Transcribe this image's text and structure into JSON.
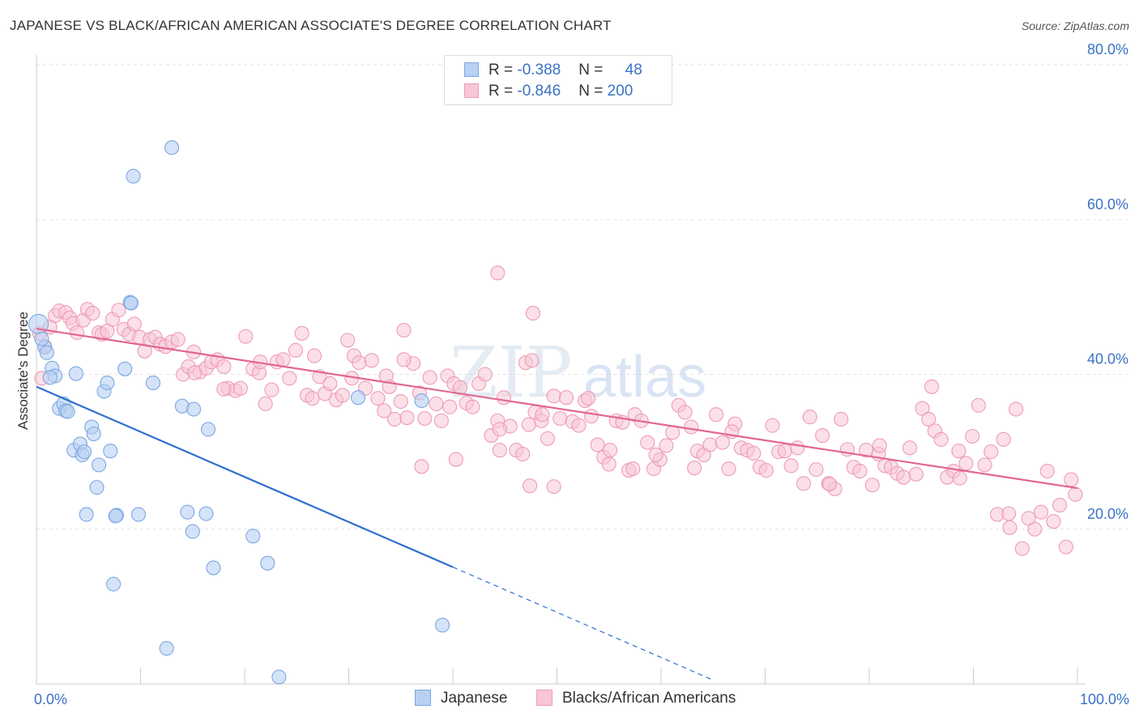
{
  "title": "JAPANESE VS BLACK/AFRICAN AMERICAN ASSOCIATE'S DEGREE CORRELATION CHART",
  "source": "Source: ZipAtlas.com",
  "watermark": {
    "zip": "ZIP",
    "atlas": "atlas"
  },
  "colors": {
    "japanese_fill": "#b8d1f3",
    "japanese_stroke": "#7da7e0",
    "japanese_line": "#2f6fd0",
    "black_fill": "#f8c6d5",
    "black_stroke": "#ee9bb6",
    "black_line": "#e2668f",
    "axis_text": "#3a72c6",
    "grid": "#e2e2e2"
  },
  "legend": {
    "japanese": {
      "r_label": "R = ",
      "r_value": "-0.388",
      "n_label": "N = ",
      "n_value": "48"
    },
    "black": {
      "r_label": "R = ",
      "r_value": "-0.846",
      "n_label": "N = ",
      "n_value": "200"
    }
  },
  "bottom_legend": {
    "japanese": "Japanese",
    "black": "Blacks/African Americans"
  },
  "chart_data": {
    "type": "scatter",
    "xlabel": "",
    "ylabel": "Associate's Degree",
    "xlim": [
      0,
      100
    ],
    "ylim": [
      0,
      80
    ],
    "x_tick_labels": [
      "0.0%",
      "100.0%"
    ],
    "y_ticks": [
      20,
      40,
      60,
      80
    ],
    "y_tick_labels": [
      "20.0%",
      "40.0%",
      "60.0%",
      "80.0%"
    ],
    "grid": true,
    "legend_position": "top-center",
    "series": [
      {
        "name": "Japanese",
        "trend": {
          "x0": 0,
          "y0": 38.4,
          "x1": 40,
          "y1": 15.1,
          "dashed_to_x": 65,
          "dashed_to_y": 0.5
        },
        "points": [
          [
            0.2,
            46.5
          ],
          [
            0.8,
            43.5
          ],
          [
            1.0,
            42.8
          ],
          [
            1.5,
            40.8
          ],
          [
            1.8,
            39.8
          ],
          [
            1.3,
            39.6
          ],
          [
            3.8,
            40.1
          ],
          [
            2.2,
            35.6
          ],
          [
            2.6,
            36.2
          ],
          [
            2.8,
            35.3
          ],
          [
            3.6,
            30.2
          ],
          [
            4.2,
            31.0
          ],
          [
            4.4,
            29.6
          ],
          [
            4.6,
            30.0
          ],
          [
            5.3,
            33.2
          ],
          [
            5.5,
            32.3
          ],
          [
            6.0,
            28.3
          ],
          [
            5.8,
            25.4
          ],
          [
            6.5,
            37.8
          ],
          [
            6.8,
            38.9
          ],
          [
            7.1,
            30.1
          ],
          [
            4.8,
            21.9
          ],
          [
            7.7,
            21.8
          ],
          [
            9.8,
            21.9
          ],
          [
            8.5,
            40.7
          ],
          [
            9.0,
            49.3
          ],
          [
            9.3,
            65.6
          ],
          [
            11.2,
            38.9
          ],
          [
            13.0,
            69.3
          ],
          [
            14.0,
            35.9
          ],
          [
            15.1,
            35.5
          ],
          [
            14.5,
            22.2
          ],
          [
            16.3,
            22.0
          ],
          [
            15.0,
            19.7
          ],
          [
            16.5,
            32.9
          ],
          [
            17.0,
            15.0
          ],
          [
            7.4,
            12.9
          ],
          [
            12.5,
            4.6
          ],
          [
            20.8,
            19.1
          ],
          [
            22.2,
            15.6
          ],
          [
            23.3,
            0.9
          ],
          [
            30.9,
            37.0
          ],
          [
            37.0,
            36.6
          ],
          [
            39.0,
            7.6
          ],
          [
            9.1,
            49.2
          ],
          [
            7.6,
            21.7
          ],
          [
            0.5,
            44.6
          ],
          [
            3.0,
            35.2
          ]
        ]
      },
      {
        "name": "Blacks/African Americans",
        "trend": {
          "x0": 0,
          "y0": 45.9,
          "x1": 100,
          "y1": 25.3
        },
        "points": [
          [
            0.3,
            45.3
          ],
          [
            0.5,
            39.5
          ],
          [
            0.8,
            43.6
          ],
          [
            1.3,
            46.1
          ],
          [
            1.8,
            47.6
          ],
          [
            2.2,
            48.2
          ],
          [
            2.8,
            48.0
          ],
          [
            3.2,
            47.3
          ],
          [
            3.5,
            46.6
          ],
          [
            3.9,
            45.4
          ],
          [
            4.5,
            47.0
          ],
          [
            4.9,
            48.4
          ],
          [
            5.4,
            47.9
          ],
          [
            6.0,
            45.4
          ],
          [
            6.3,
            45.2
          ],
          [
            6.8,
            45.6
          ],
          [
            7.3,
            47.1
          ],
          [
            7.9,
            48.3
          ],
          [
            8.4,
            45.8
          ],
          [
            8.9,
            45.2
          ],
          [
            9.4,
            46.5
          ],
          [
            9.9,
            44.8
          ],
          [
            10.4,
            43.0
          ],
          [
            10.9,
            44.5
          ],
          [
            11.4,
            44.8
          ],
          [
            11.9,
            43.9
          ],
          [
            12.4,
            43.6
          ],
          [
            13.0,
            44.2
          ],
          [
            13.6,
            44.5
          ],
          [
            14.1,
            40.0
          ],
          [
            14.6,
            41.0
          ],
          [
            15.1,
            42.9
          ],
          [
            15.7,
            40.3
          ],
          [
            16.3,
            40.8
          ],
          [
            16.8,
            41.6
          ],
          [
            17.4,
            41.9
          ],
          [
            18.0,
            41.0
          ],
          [
            18.4,
            38.2
          ],
          [
            19.1,
            37.9
          ],
          [
            19.6,
            38.2
          ],
          [
            20.1,
            44.9
          ],
          [
            20.8,
            40.7
          ],
          [
            21.4,
            40.2
          ],
          [
            22.0,
            36.2
          ],
          [
            22.6,
            38.0
          ],
          [
            23.1,
            41.6
          ],
          [
            23.7,
            41.9
          ],
          [
            24.3,
            39.5
          ],
          [
            24.9,
            43.1
          ],
          [
            25.5,
            45.3
          ],
          [
            26.0,
            37.3
          ],
          [
            26.7,
            42.4
          ],
          [
            27.2,
            39.7
          ],
          [
            27.7,
            37.5
          ],
          [
            28.2,
            38.8
          ],
          [
            28.8,
            36.7
          ],
          [
            29.4,
            37.3
          ],
          [
            29.9,
            44.4
          ],
          [
            30.5,
            42.4
          ],
          [
            31.0,
            41.5
          ],
          [
            31.6,
            38.2
          ],
          [
            32.2,
            41.8
          ],
          [
            32.8,
            36.9
          ],
          [
            33.4,
            35.3
          ],
          [
            33.9,
            38.4
          ],
          [
            34.4,
            34.2
          ],
          [
            35.0,
            36.5
          ],
          [
            35.6,
            34.4
          ],
          [
            36.2,
            41.4
          ],
          [
            36.8,
            37.6
          ],
          [
            37.3,
            34.3
          ],
          [
            37.8,
            39.6
          ],
          [
            38.4,
            36.2
          ],
          [
            38.9,
            34.0
          ],
          [
            39.5,
            39.8
          ],
          [
            40.1,
            38.8
          ],
          [
            40.7,
            38.3
          ],
          [
            41.3,
            36.3
          ],
          [
            41.9,
            35.8
          ],
          [
            42.5,
            38.8
          ],
          [
            43.1,
            40.0
          ],
          [
            43.7,
            32.1
          ],
          [
            44.3,
            34.0
          ],
          [
            44.9,
            37.0
          ],
          [
            45.5,
            33.3
          ],
          [
            46.1,
            30.2
          ],
          [
            46.7,
            29.7
          ],
          [
            47.3,
            33.5
          ],
          [
            47.9,
            35.1
          ],
          [
            48.5,
            34.0
          ],
          [
            49.1,
            31.7
          ],
          [
            49.7,
            37.2
          ],
          [
            50.3,
            34.3
          ],
          [
            50.9,
            37.0
          ],
          [
            51.5,
            33.9
          ],
          [
            52.1,
            33.4
          ],
          [
            52.7,
            36.6
          ],
          [
            53.3,
            34.6
          ],
          [
            53.9,
            30.9
          ],
          [
            54.5,
            29.3
          ],
          [
            55.1,
            30.2
          ],
          [
            55.7,
            34.0
          ],
          [
            56.3,
            33.8
          ],
          [
            56.9,
            27.6
          ],
          [
            57.5,
            34.8
          ],
          [
            58.1,
            34.0
          ],
          [
            58.7,
            31.2
          ],
          [
            59.3,
            27.8
          ],
          [
            59.9,
            29.0
          ],
          [
            60.5,
            30.8
          ],
          [
            61.1,
            32.5
          ],
          [
            61.7,
            36.0
          ],
          [
            62.3,
            35.1
          ],
          [
            62.9,
            33.2
          ],
          [
            63.5,
            30.1
          ],
          [
            64.1,
            29.6
          ],
          [
            64.7,
            30.9
          ],
          [
            65.3,
            34.8
          ],
          [
            65.9,
            31.2
          ],
          [
            66.5,
            27.8
          ],
          [
            67.1,
            33.6
          ],
          [
            67.7,
            30.5
          ],
          [
            68.3,
            30.2
          ],
          [
            68.9,
            29.8
          ],
          [
            69.5,
            28.0
          ],
          [
            70.1,
            27.6
          ],
          [
            70.7,
            33.4
          ],
          [
            71.3,
            30.0
          ],
          [
            71.9,
            30.1
          ],
          [
            72.5,
            28.2
          ],
          [
            73.1,
            30.5
          ],
          [
            73.7,
            25.9
          ],
          [
            74.3,
            34.5
          ],
          [
            74.9,
            27.7
          ],
          [
            75.5,
            32.1
          ],
          [
            76.1,
            25.9
          ],
          [
            76.7,
            25.2
          ],
          [
            77.3,
            34.2
          ],
          [
            77.9,
            30.3
          ],
          [
            78.5,
            28.0
          ],
          [
            79.1,
            27.5
          ],
          [
            79.7,
            30.2
          ],
          [
            80.3,
            25.7
          ],
          [
            80.9,
            29.7
          ],
          [
            81.5,
            28.2
          ],
          [
            82.1,
            28.0
          ],
          [
            82.7,
            27.2
          ],
          [
            83.3,
            26.7
          ],
          [
            83.9,
            30.5
          ],
          [
            84.5,
            27.1
          ],
          [
            85.1,
            35.6
          ],
          [
            85.7,
            34.2
          ],
          [
            86.3,
            32.7
          ],
          [
            86.9,
            31.6
          ],
          [
            87.5,
            26.7
          ],
          [
            88.1,
            27.5
          ],
          [
            88.7,
            26.6
          ],
          [
            89.3,
            28.5
          ],
          [
            89.9,
            32.0
          ],
          [
            90.5,
            36.0
          ],
          [
            91.1,
            28.3
          ],
          [
            91.7,
            30.0
          ],
          [
            92.3,
            21.9
          ],
          [
            92.9,
            31.6
          ],
          [
            93.5,
            20.2
          ],
          [
            94.1,
            35.5
          ],
          [
            94.7,
            17.5
          ],
          [
            95.3,
            21.4
          ],
          [
            95.9,
            20.0
          ],
          [
            96.5,
            22.2
          ],
          [
            97.1,
            27.5
          ],
          [
            97.7,
            21.0
          ],
          [
            98.3,
            23.1
          ],
          [
            98.9,
            17.7
          ],
          [
            99.4,
            26.4
          ],
          [
            99.8,
            24.5
          ],
          [
            47.4,
            25.6
          ],
          [
            57.3,
            27.8
          ],
          [
            39.7,
            35.8
          ],
          [
            48.6,
            34.8
          ],
          [
            21.5,
            41.6
          ],
          [
            18.0,
            38.1
          ],
          [
            26.5,
            36.9
          ],
          [
            15.2,
            40.2
          ],
          [
            35.3,
            41.9
          ],
          [
            44.5,
            30.2
          ],
          [
            37.0,
            28.1
          ],
          [
            44.5,
            32.9
          ],
          [
            66.8,
            32.6
          ],
          [
            81.0,
            30.8
          ],
          [
            86.0,
            38.4
          ],
          [
            63.2,
            27.9
          ],
          [
            55.0,
            28.4
          ],
          [
            59.5,
            29.6
          ],
          [
            88.6,
            30.1
          ],
          [
            93.4,
            22.0
          ],
          [
            76.2,
            25.8
          ],
          [
            40.3,
            29.0
          ],
          [
            53.0,
            36.9
          ],
          [
            30.3,
            39.5
          ],
          [
            49.7,
            25.5
          ],
          [
            33.6,
            39.8
          ]
        ]
      }
    ],
    "extra_black_points": [
      [
        44.3,
        53.1
      ],
      [
        47.7,
        47.9
      ],
      [
        35.3,
        45.7
      ],
      [
        47.0,
        41.5
      ],
      [
        47.6,
        41.8
      ]
    ]
  }
}
